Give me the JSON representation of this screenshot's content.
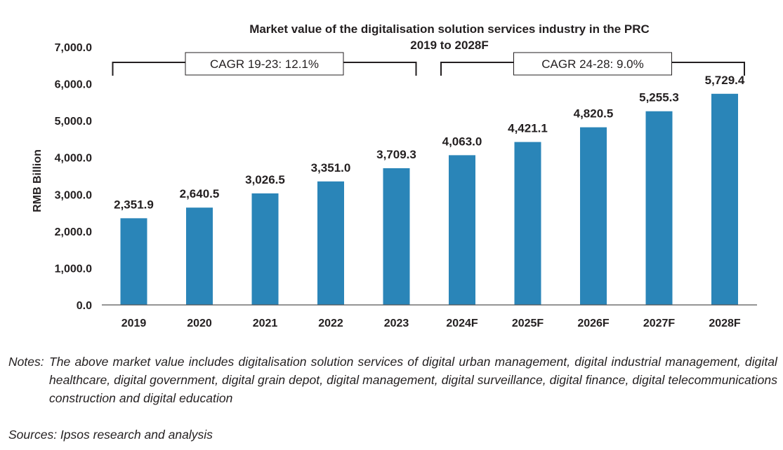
{
  "chart_data": {
    "type": "bar",
    "title": "Market value of the digitalisation solution services industry in the PRC",
    "subtitle": "2019 to 2028F",
    "xlabel": "",
    "ylabel": "RMB Billion",
    "ylim": [
      0,
      7000
    ],
    "yticks": [
      "0.0",
      "1,000.0",
      "2,000.0",
      "3,000.0",
      "4,000.0",
      "5,000.0",
      "6,000.0",
      "7,000.0"
    ],
    "categories": [
      "2019",
      "2020",
      "2021",
      "2022",
      "2023",
      "2024F",
      "2025F",
      "2026F",
      "2027F",
      "2028F"
    ],
    "values": [
      2351.9,
      2640.5,
      3026.5,
      3351.0,
      3709.3,
      4063.0,
      4421.1,
      4820.5,
      5255.3,
      5729.4
    ],
    "value_labels": [
      "2,351.9",
      "2,640.5",
      "3,026.5",
      "3,351.0",
      "3,709.3",
      "4,063.0",
      "4,421.1",
      "4,820.5",
      "5,255.3",
      "5,729.4"
    ],
    "grid": false,
    "bar_color": "#2a85b8",
    "annotations": [
      {
        "text": "CAGR 19-23: 12.1%",
        "from": "2019",
        "to": "2023"
      },
      {
        "text": "CAGR 24-28: 9.0%",
        "from": "2024F",
        "to": "2028F"
      }
    ]
  },
  "notes": {
    "prefix": "Notes:",
    "text": "The above market value includes digitalisation solution services of digital urban management, digital industrial management, digital healthcare, digital government, digital grain depot, digital management, digital surveillance, digital finance, digital telecommunications construction and digital education"
  },
  "sources": "Sources: Ipsos research and analysis"
}
